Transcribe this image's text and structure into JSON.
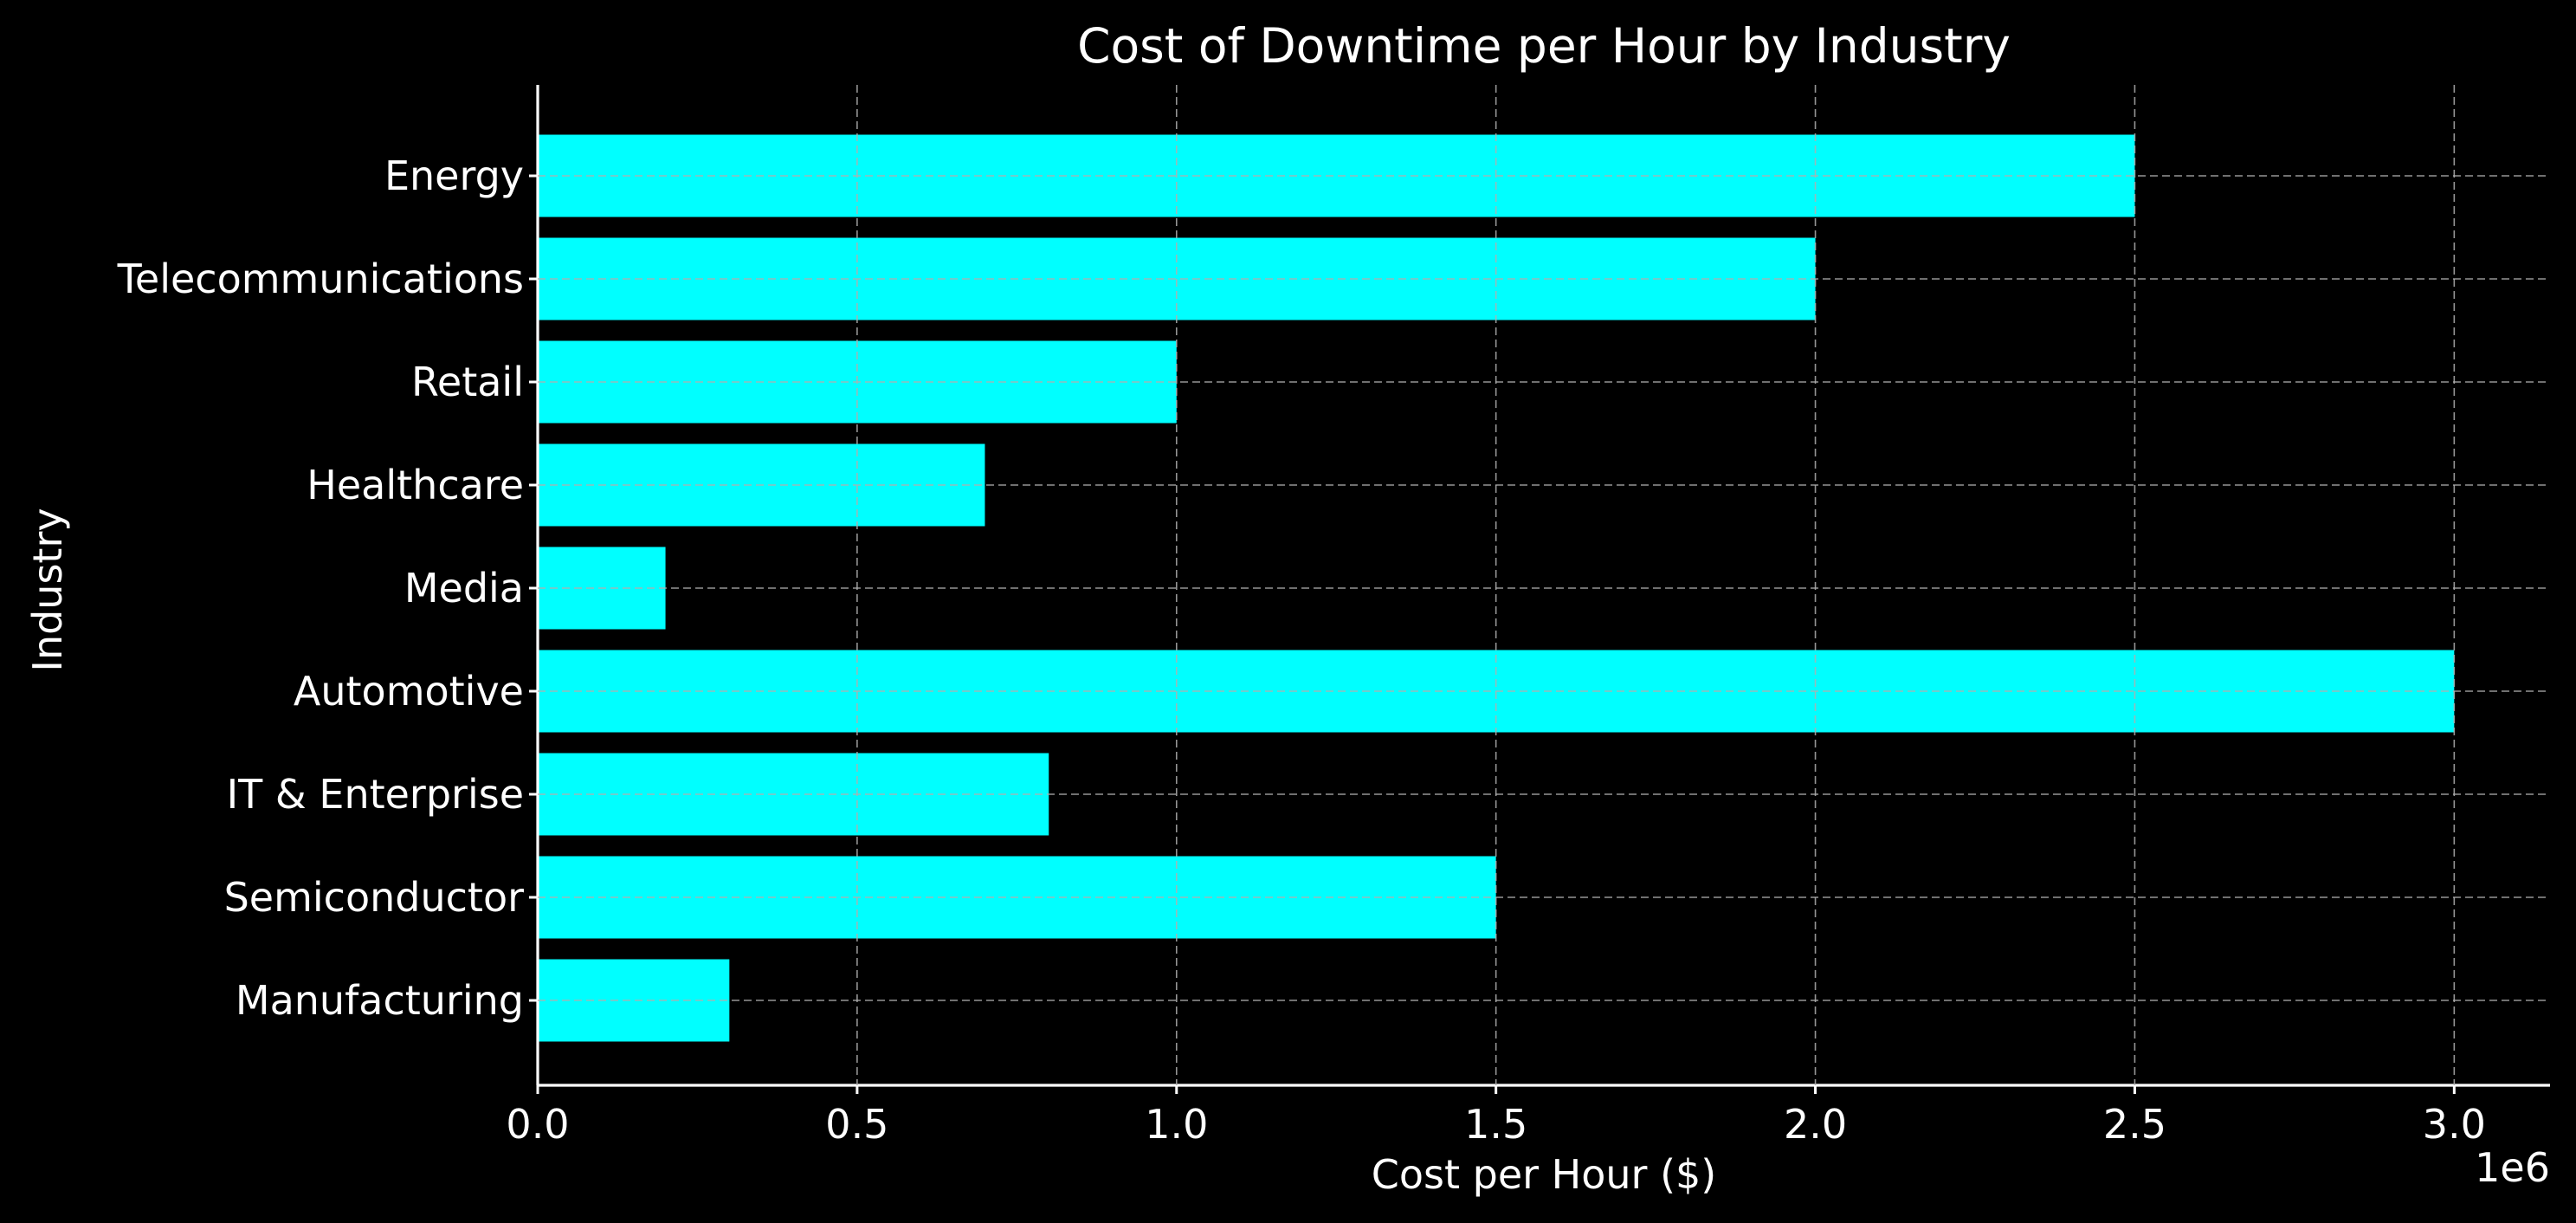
{
  "chart_data": {
    "type": "bar",
    "orientation": "horizontal",
    "title": "Cost of Downtime per Hour by Industry",
    "xlabel": "Cost per Hour ($)",
    "ylabel": "Industry",
    "x_scale_label": "1e6",
    "xlim": [
      0,
      3150000
    ],
    "x_ticks": [
      0,
      500000,
      1000000,
      1500000,
      2000000,
      2500000,
      3000000
    ],
    "x_tick_labels": [
      "0.0",
      "0.5",
      "1.0",
      "1.5",
      "2.0",
      "2.5",
      "3.0"
    ],
    "categories": [
      "Manufacturing",
      "Semiconductor",
      "IT & Enterprise",
      "Automotive",
      "Media",
      "Healthcare",
      "Retail",
      "Telecommunications",
      "Energy"
    ],
    "values": [
      300000,
      1500000,
      800000,
      3000000,
      200000,
      700000,
      1000000,
      2000000,
      2500000
    ],
    "grid": true,
    "colors": {
      "background": "#000000",
      "bar": "#00ffff",
      "text": "#ffffff",
      "grid": "#b0b0b0"
    }
  }
}
